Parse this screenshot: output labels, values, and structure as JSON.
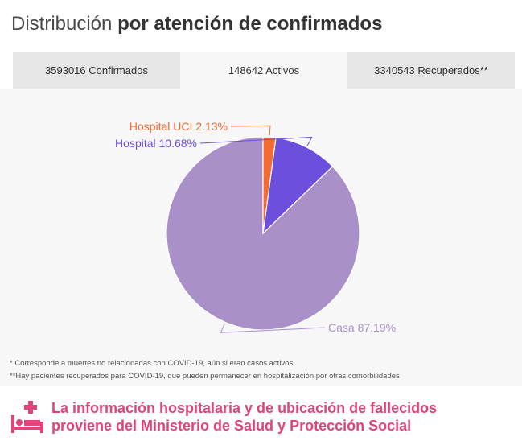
{
  "header": {
    "title_prefix": "Distribución",
    "title_bold": "por atención de confirmados"
  },
  "tabs": [
    {
      "label": "3593016 Confirmados",
      "active": false
    },
    {
      "label": "148642 Activos",
      "active": true
    },
    {
      "label": "3340543 Recuperados**",
      "active": false
    }
  ],
  "chart_data": {
    "type": "pie",
    "title": "",
    "slices": [
      {
        "label": "Casa 87.19%",
        "name": "Casa",
        "value": 87.19,
        "color": "#a990c9"
      },
      {
        "label": "Hospital 10.68%",
        "name": "Hospital",
        "value": 10.68,
        "color": "#6c4fdc"
      },
      {
        "label": "Hospital UCI 2.13%",
        "name": "Hospital UCI",
        "value": 2.13,
        "color": "#f26b35"
      }
    ]
  },
  "footnotes": {
    "note1": "* Corresponde a muertes no relacionadas con COVID-19, aún si eran casos activos",
    "note2": "**Hay pacientes recuperados para COVID-19, que pueden permanecer en hospitalización por otras comorbilidades"
  },
  "source": {
    "line1": "La información hospitalaria y de ubicación de fallecidos",
    "line2": "proviene del Ministerio de Salud y Protección Social",
    "icon": "hospital-bed-icon",
    "color": "#e0447a"
  }
}
